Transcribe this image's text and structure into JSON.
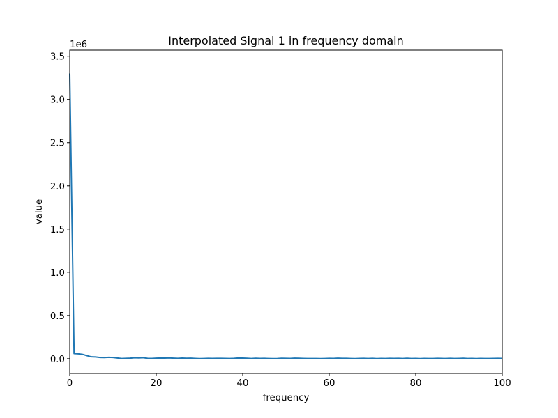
{
  "chart_data": {
    "type": "line",
    "title": "Interpolated Signal 1 in frequency domain",
    "xlabel": "frequency",
    "ylabel": "value",
    "y_offset_label": "1e6",
    "xlim": [
      0,
      100
    ],
    "ylim": [
      -0.17,
      3.57
    ],
    "xticks": [
      0,
      20,
      40,
      60,
      80,
      100
    ],
    "xtick_labels": [
      "0",
      "20",
      "40",
      "60",
      "80",
      "100"
    ],
    "yticks": [
      0.0,
      0.5,
      1.0,
      1.5,
      2.0,
      2.5,
      3.0,
      3.5
    ],
    "ytick_labels": [
      "0.0",
      "0.5",
      "1.0",
      "1.5",
      "2.0",
      "2.5",
      "3.0",
      "3.5"
    ],
    "grid": false,
    "series": [
      {
        "color": "#1f77b4",
        "x": [
          0,
          1,
          2,
          3,
          4,
          5,
          6,
          7,
          8,
          9,
          10,
          11,
          12,
          13,
          14,
          15,
          16,
          17,
          18,
          19,
          20,
          21,
          22,
          23,
          24,
          25,
          26,
          27,
          28,
          29,
          30,
          31,
          32,
          33,
          34,
          35,
          36,
          37,
          38,
          39,
          40,
          41,
          42,
          43,
          44,
          45,
          46,
          47,
          48,
          49,
          50,
          51,
          52,
          53,
          54,
          55,
          56,
          57,
          58,
          59,
          60,
          61,
          62,
          63,
          64,
          65,
          66,
          67,
          68,
          69,
          70,
          71,
          72,
          73,
          74,
          75,
          76,
          77,
          78,
          79,
          80,
          81,
          82,
          83,
          84,
          85,
          86,
          87,
          88,
          89,
          90,
          91,
          92,
          93,
          94,
          95,
          96,
          97,
          98,
          99,
          100
        ],
        "y": [
          3.3,
          0.06,
          0.057,
          0.05,
          0.035,
          0.022,
          0.02,
          0.014,
          0.013,
          0.016,
          0.014,
          0.008,
          0.002,
          0.004,
          0.006,
          0.011,
          0.009,
          0.012,
          0.004,
          0.003,
          0.006,
          0.008,
          0.007,
          0.009,
          0.006,
          0.004,
          0.007,
          0.005,
          0.006,
          0.003,
          0.001,
          0.002,
          0.004,
          0.003,
          0.004,
          0.004,
          0.003,
          0.002,
          0.004,
          0.008,
          0.007,
          0.005,
          0.002,
          0.005,
          0.003,
          0.004,
          0.002,
          0.001,
          0.002,
          0.005,
          0.004,
          0.003,
          0.006,
          0.005,
          0.003,
          0.002,
          0.002,
          0.002,
          0.001,
          0.002,
          0.004,
          0.003,
          0.006,
          0.004,
          0.004,
          0.002,
          0.001,
          0.003,
          0.004,
          0.002,
          0.004,
          0.001,
          0.003,
          0.002,
          0.004,
          0.003,
          0.004,
          0.002,
          0.005,
          0.002,
          0.003,
          0.001,
          0.003,
          0.002,
          0.002,
          0.004,
          0.003,
          0.002,
          0.004,
          0.002,
          0.003,
          0.005,
          0.002,
          0.003,
          0.001,
          0.003,
          0.002,
          0.002,
          0.003,
          0.004,
          0.003
        ]
      }
    ]
  }
}
